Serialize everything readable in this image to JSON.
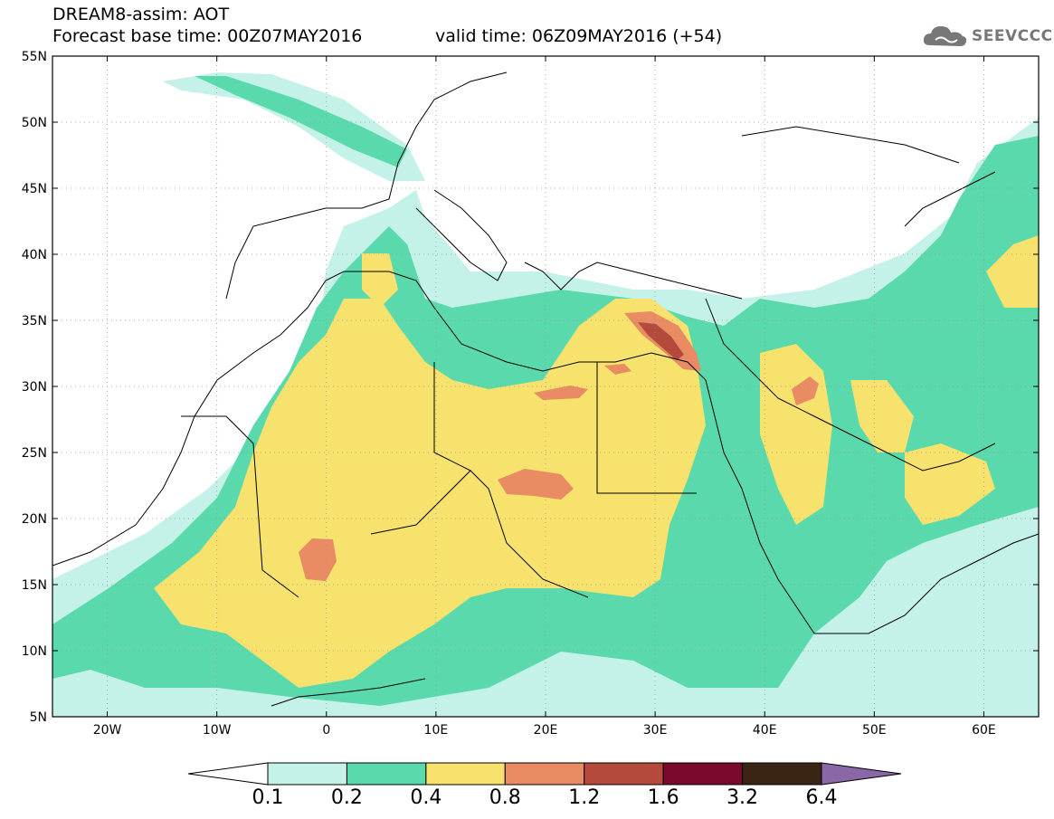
{
  "header": {
    "title": "DREAM8-assim: AOT",
    "base_time": "Forecast base time: 00Z07MAY2016",
    "valid_time": "valid time: 06Z09MAY2016 (+54)"
  },
  "logo": {
    "text": "SEEVCCC",
    "icon": "cloud-icon",
    "color": "#777777"
  },
  "map": {
    "lon_range": [
      -25,
      65
    ],
    "lat_range": [
      5,
      55
    ],
    "lon_ticks": [
      "20W",
      "10W",
      "0",
      "10E",
      "20E",
      "30E",
      "40E",
      "50E",
      "60E"
    ],
    "lat_ticks": [
      "55N",
      "50N",
      "45N",
      "40N",
      "35N",
      "30N",
      "25N",
      "20N",
      "15N",
      "10N",
      "5N"
    ]
  },
  "colorbar": {
    "colors": [
      "#ffffff",
      "#c4f1e8",
      "#5ad9ad",
      "#f6e26c",
      "#e98c64",
      "#b34a3c",
      "#7a0a2b",
      "#3a2414",
      "#8a68a8"
    ],
    "labels": [
      "0.1",
      "0.2",
      "0.4",
      "0.8",
      "1.2",
      "1.6",
      "3.2",
      "6.4"
    ]
  }
}
